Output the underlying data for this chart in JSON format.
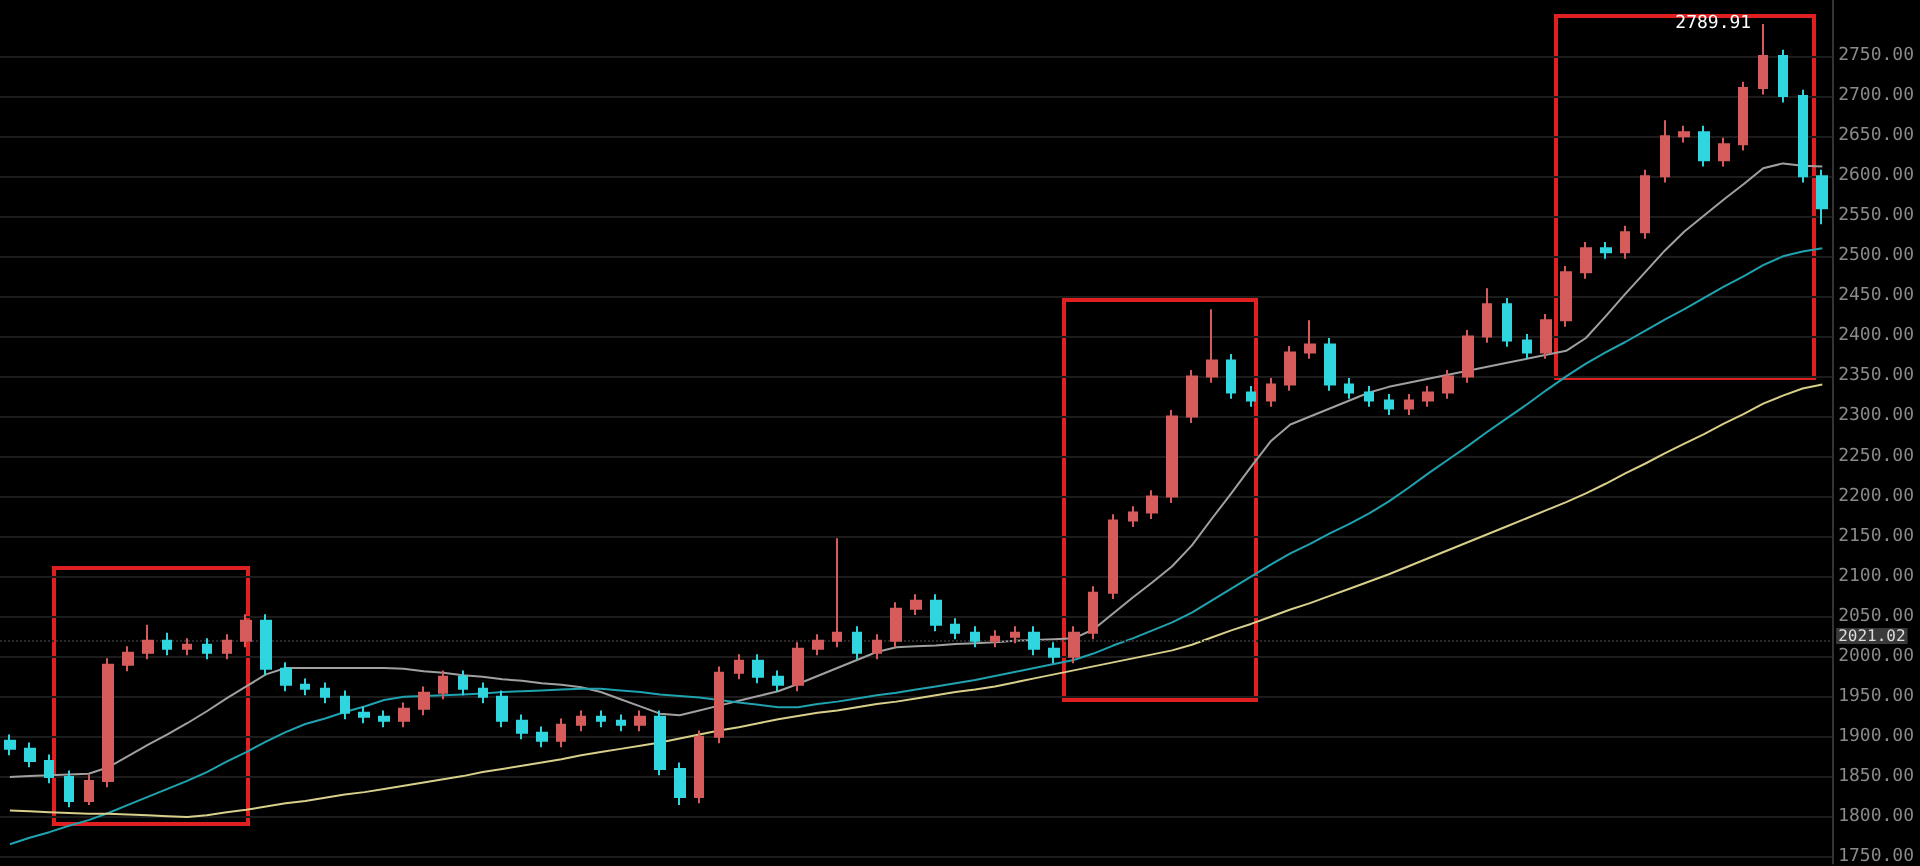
{
  "chart_data": {
    "type": "candlestick",
    "categories": [
      null,
      null,
      null,
      null,
      null,
      null,
      null,
      null,
      null,
      null,
      null,
      null,
      null,
      null,
      null,
      null,
      null,
      null,
      null,
      null,
      null,
      null,
      null,
      null,
      null,
      null,
      null,
      null,
      null,
      null,
      null,
      null,
      null,
      null,
      null,
      null,
      null,
      null,
      null,
      null,
      null,
      null,
      null,
      null,
      null,
      null,
      null,
      null,
      null,
      null,
      null,
      null,
      null,
      null,
      null,
      null,
      null,
      null,
      null,
      null,
      null,
      null,
      null,
      null,
      null,
      null,
      null,
      null,
      null,
      null,
      null,
      null,
      null,
      null,
      null,
      null,
      null,
      null,
      null,
      null,
      null,
      null,
      null,
      null,
      null,
      null,
      null,
      null,
      null,
      null,
      null,
      null,
      null
    ],
    "colors": [
      "#2fd6e0",
      "#2fd6e0",
      "#2fd6e0",
      "#2fd6e0",
      "#d65c5c",
      "#d65c5c",
      "#d65c5c",
      "#d65c5c",
      "#2fd6e0",
      "#d65c5c",
      "#2fd6e0",
      "#d65c5c",
      "#d65c5c",
      "#2fd6e0",
      "#2fd6e0",
      "#2fd6e0",
      "#2fd6e0",
      "#2fd6e0",
      "#2fd6e0",
      "#2fd6e0",
      "#d65c5c",
      "#d65c5c",
      "#d65c5c",
      "#2fd6e0",
      "#2fd6e0",
      "#2fd6e0",
      "#2fd6e0",
      "#2fd6e0",
      "#d65c5c",
      "#d65c5c",
      "#2fd6e0",
      "#2fd6e0",
      "#d65c5c",
      "#2fd6e0",
      "#2fd6e0",
      "#d65c5c",
      "#d65c5c",
      "#d65c5c",
      "#2fd6e0",
      "#2fd6e0",
      "#d65c5c",
      "#d65c5c",
      "#d65c5c",
      "#2fd6e0",
      "#d65c5c",
      "#d65c5c",
      "#d65c5c",
      "#2fd6e0",
      "#2fd6e0",
      "#2fd6e0",
      "#d65c5c",
      "#d65c5c",
      "#2fd6e0",
      "#2fd6e0",
      "#d65c5c",
      "#d65c5c",
      "#d65c5c",
      "#d65c5c",
      "#d65c5c",
      "#d65c5c",
      "#d65c5c",
      "#d65c5c",
      "#2fd6e0",
      "#2fd6e0",
      "#d65c5c",
      "#d65c5c",
      "#d65c5c",
      "#2fd6e0",
      "#2fd6e0",
      "#2fd6e0",
      "#2fd6e0",
      "#d65c5c",
      "#d65c5c",
      "#d65c5c",
      "#d65c5c",
      "#d65c5c",
      "#2fd6e0",
      "#2fd6e0",
      "#d65c5c",
      "#d65c5c",
      "#d65c5c",
      "#2fd6e0",
      "#d65c5c",
      "#d65c5c",
      "#d65c5c",
      "#d65c5c",
      "#2fd6e0",
      "#d65c5c",
      "#d65c5c",
      "#d65c5c",
      "#2fd6e0",
      "#2fd6e0",
      "#2fd6e0"
    ],
    "ohlc": [
      [
        1895,
        1903,
        1877,
        1885
      ],
      [
        1885,
        1893,
        1862,
        1870
      ],
      [
        1870,
        1878,
        1842,
        1850
      ],
      [
        1850,
        1858,
        1812,
        1820
      ],
      [
        1820,
        1853,
        1815,
        1845
      ],
      [
        1845,
        1998,
        1837,
        1990
      ],
      [
        1990,
        2013,
        1982,
        2005
      ],
      [
        2005,
        2040,
        1997,
        2020
      ],
      [
        2020,
        2030,
        2002,
        2010
      ],
      [
        2010,
        2023,
        2002,
        2015
      ],
      [
        2015,
        2023,
        1997,
        2005
      ],
      [
        2005,
        2028,
        1997,
        2020
      ],
      [
        2020,
        2053,
        2012,
        2045
      ],
      [
        2045,
        2053,
        1977,
        1985
      ],
      [
        1985,
        1993,
        1957,
        1965
      ],
      [
        1965,
        1973,
        1952,
        1960
      ],
      [
        1960,
        1968,
        1942,
        1950
      ],
      [
        1950,
        1958,
        1922,
        1930
      ],
      [
        1930,
        1938,
        1917,
        1925
      ],
      [
        1925,
        1933,
        1912,
        1920
      ],
      [
        1920,
        1943,
        1912,
        1935
      ],
      [
        1935,
        1963,
        1927,
        1955
      ],
      [
        1955,
        1983,
        1947,
        1975
      ],
      [
        1975,
        1983,
        1952,
        1960
      ],
      [
        1960,
        1968,
        1942,
        1950
      ],
      [
        1950,
        1958,
        1912,
        1920
      ],
      [
        1920,
        1928,
        1897,
        1905
      ],
      [
        1905,
        1913,
        1887,
        1895
      ],
      [
        1895,
        1923,
        1887,
        1915
      ],
      [
        1915,
        1933,
        1907,
        1925
      ],
      [
        1925,
        1933,
        1912,
        1920
      ],
      [
        1920,
        1928,
        1907,
        1915
      ],
      [
        1915,
        1933,
        1907,
        1925
      ],
      [
        1925,
        1933,
        1852,
        1860
      ],
      [
        1860,
        1868,
        1815,
        1825
      ],
      [
        1825,
        1908,
        1817,
        1900
      ],
      [
        1900,
        1988,
        1892,
        1980
      ],
      [
        1980,
        2003,
        1972,
        1995
      ],
      [
        1995,
        2003,
        1967,
        1975
      ],
      [
        1975,
        1983,
        1957,
        1965
      ],
      [
        1965,
        2018,
        1957,
        2010
      ],
      [
        2010,
        2028,
        2002,
        2020
      ],
      [
        2020,
        2148,
        2012,
        2030
      ],
      [
        2030,
        2038,
        1997,
        2005
      ],
      [
        2005,
        2028,
        1997,
        2020
      ],
      [
        2020,
        2068,
        2012,
        2060
      ],
      [
        2060,
        2078,
        2052,
        2070
      ],
      [
        2070,
        2078,
        2032,
        2040
      ],
      [
        2040,
        2048,
        2022,
        2030
      ],
      [
        2030,
        2038,
        2012,
        2020
      ],
      [
        2020,
        2033,
        2012,
        2025
      ],
      [
        2025,
        2038,
        2017,
        2030
      ],
      [
        2030,
        2038,
        2002,
        2010
      ],
      [
        2010,
        2018,
        1992,
        2000
      ],
      [
        2000,
        2038,
        1992,
        2030
      ],
      [
        2030,
        2088,
        2022,
        2080
      ],
      [
        2080,
        2178,
        2072,
        2170
      ],
      [
        2170,
        2188,
        2162,
        2180
      ],
      [
        2180,
        2208,
        2172,
        2200
      ],
      [
        2200,
        2308,
        2192,
        2300
      ],
      [
        2300,
        2358,
        2292,
        2350
      ],
      [
        2350,
        2434,
        2342,
        2370
      ],
      [
        2370,
        2378,
        2322,
        2330
      ],
      [
        2330,
        2338,
        2312,
        2320
      ],
      [
        2320,
        2348,
        2312,
        2340
      ],
      [
        2340,
        2388,
        2332,
        2380
      ],
      [
        2380,
        2420,
        2372,
        2390
      ],
      [
        2390,
        2398,
        2332,
        2340
      ],
      [
        2340,
        2348,
        2322,
        2330
      ],
      [
        2330,
        2338,
        2312,
        2320
      ],
      [
        2320,
        2328,
        2302,
        2310
      ],
      [
        2310,
        2328,
        2302,
        2320
      ],
      [
        2320,
        2338,
        2312,
        2330
      ],
      [
        2330,
        2358,
        2322,
        2350
      ],
      [
        2350,
        2408,
        2342,
        2400
      ],
      [
        2400,
        2460,
        2392,
        2440
      ],
      [
        2440,
        2448,
        2387,
        2395
      ],
      [
        2395,
        2403,
        2372,
        2380
      ],
      [
        2380,
        2428,
        2372,
        2420
      ],
      [
        2420,
        2488,
        2412,
        2480
      ],
      [
        2480,
        2518,
        2472,
        2510
      ],
      [
        2510,
        2518,
        2497,
        2505
      ],
      [
        2505,
        2538,
        2497,
        2530
      ],
      [
        2530,
        2608,
        2522,
        2600
      ],
      [
        2600,
        2670,
        2592,
        2650
      ],
      [
        2650,
        2663,
        2642,
        2655
      ],
      [
        2655,
        2663,
        2612,
        2620
      ],
      [
        2620,
        2648,
        2612,
        2640
      ],
      [
        2640,
        2718,
        2632,
        2710
      ],
      [
        2710,
        2789.91,
        2702,
        2750
      ],
      [
        2750,
        2758,
        2692,
        2700
      ],
      [
        2700,
        2708,
        2592,
        2600
      ],
      [
        2600,
        2608,
        2540,
        2560
      ]
    ],
    "series": [
      {
        "type": "line",
        "color": "#a0a0a0",
        "values": [
          1850,
          1851,
          1852,
          1853,
          1854,
          1862,
          1876,
          1890,
          1903,
          1917,
          1932,
          1948,
          1963,
          1978,
          1986,
          1986,
          1986,
          1986,
          1986,
          1986,
          1985,
          1982,
          1980,
          1977,
          1975,
          1972,
          1970,
          1967,
          1965,
          1962,
          1956,
          1947,
          1938,
          1929,
          1927,
          1933,
          1939,
          1945,
          1951,
          1957,
          1966,
          1976,
          1986,
          1996,
          2006,
          2012,
          2013,
          2014,
          2016,
          2017,
          2018,
          2020,
          2021,
          2022,
          2023,
          2034,
          2054,
          2074,
          2093,
          2113,
          2139,
          2172,
          2204,
          2237,
          2269,
          2290,
          2300,
          2310,
          2320,
          2330,
          2337,
          2342,
          2347,
          2352,
          2357,
          2362,
          2367,
          2372,
          2377,
          2382,
          2398,
          2425,
          2453,
          2480,
          2507,
          2531,
          2551,
          2571,
          2590,
          2610,
          2616,
          2613,
          2612
        ]
      },
      {
        "type": "line",
        "color": "#1fa3b0",
        "values": [
          1766,
          1774,
          1781,
          1789,
          1796,
          1805,
          1815,
          1825,
          1835,
          1845,
          1856,
          1869,
          1881,
          1894,
          1906,
          1916,
          1923,
          1931,
          1938,
          1946,
          1950,
          1951,
          1952,
          1953,
          1954,
          1956,
          1957,
          1958,
          1959,
          1960,
          1960,
          1958,
          1956,
          1953,
          1951,
          1949,
          1946,
          1943,
          1940,
          1937,
          1937,
          1941,
          1944,
          1948,
          1952,
          1955,
          1959,
          1963,
          1967,
          1971,
          1976,
          1981,
          1986,
          1991,
          1996,
          2004,
          2014,
          2023,
          2033,
          2043,
          2055,
          2070,
          2085,
          2100,
          2115,
          2129,
          2141,
          2154,
          2166,
          2179,
          2194,
          2211,
          2229,
          2246,
          2263,
          2281,
          2298,
          2315,
          2333,
          2350,
          2366,
          2380,
          2393,
          2407,
          2421,
          2434,
          2448,
          2462,
          2475,
          2489,
          2500,
          2506,
          2510
        ]
      },
      {
        "type": "line",
        "color": "#d8cf8a",
        "values": [
          1808,
          1807,
          1806,
          1805,
          1804,
          1804,
          1803,
          1802,
          1801,
          1800,
          1802,
          1806,
          1809,
          1813,
          1817,
          1820,
          1824,
          1828,
          1831,
          1835,
          1839,
          1843,
          1847,
          1851,
          1856,
          1860,
          1864,
          1868,
          1872,
          1877,
          1881,
          1885,
          1889,
          1893,
          1898,
          1903,
          1908,
          1912,
          1917,
          1922,
          1926,
          1930,
          1933,
          1937,
          1941,
          1944,
          1948,
          1952,
          1956,
          1959,
          1963,
          1968,
          1973,
          1978,
          1983,
          1988,
          1993,
          1998,
          2003,
          2008,
          2015,
          2024,
          2033,
          2041,
          2050,
          2059,
          2067,
          2076,
          2085,
          2094,
          2103,
          2113,
          2123,
          2133,
          2143,
          2153,
          2163,
          2173,
          2183,
          2193,
          2204,
          2216,
          2229,
          2241,
          2254,
          2266,
          2278,
          2291,
          2303,
          2316,
          2326,
          2335,
          2340
        ]
      }
    ],
    "ylim": [
      1742,
      2820
    ],
    "yticks": [
      {
        "value": 1750,
        "label": "1750.00"
      },
      {
        "value": 1800,
        "label": "1800.00"
      },
      {
        "value": 1850,
        "label": "1850.00"
      },
      {
        "value": 1900,
        "label": "1900.00"
      },
      {
        "value": 1950,
        "label": "1950.00"
      },
      {
        "value": 2000,
        "label": "2000.00"
      },
      {
        "value": 2050,
        "label": "2050.00"
      },
      {
        "value": 2100,
        "label": "2100.00"
      },
      {
        "value": 2150,
        "label": "2150.00"
      },
      {
        "value": 2200,
        "label": "2200.00"
      },
      {
        "value": 2250,
        "label": "2250.00"
      },
      {
        "value": 2300,
        "label": "2300.00"
      },
      {
        "value": 2350,
        "label": "2350.00"
      },
      {
        "value": 2400,
        "label": "2400.00"
      },
      {
        "value": 2450,
        "label": "2450.00"
      },
      {
        "value": 2500,
        "label": "2500.00"
      },
      {
        "value": 2550,
        "label": "2550.00"
      },
      {
        "value": 2600,
        "label": "2600.00"
      },
      {
        "value": 2650,
        "label": "2650.00"
      },
      {
        "value": 2700,
        "label": "2700.00"
      },
      {
        "value": 2750,
        "label": "2750.00"
      }
    ],
    "ref_lines": [
      {
        "axis": "y",
        "value": 2021.02,
        "label": "2021.02",
        "color": "#2a2a2a",
        "line_style": "dotted"
      }
    ],
    "annotations": [
      "2789.91"
    ],
    "grid": "y",
    "tick_labels": "y"
  }
}
